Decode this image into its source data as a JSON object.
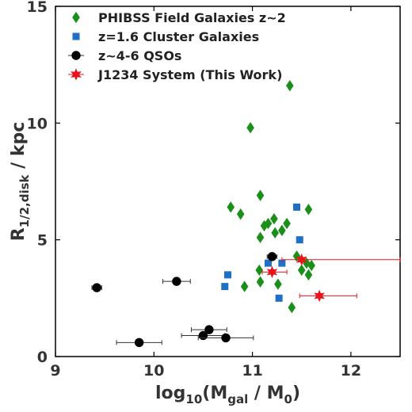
{
  "chart_data": {
    "type": "scatter",
    "xlabel_base": "log",
    "xlabel_sub": "10",
    "xlabel_rest": "(M",
    "xlabel_sub2": "gal",
    "xlabel_mid": " / M",
    "xlabel_sub3": "0",
    "xlabel_end": ")",
    "ylabel_base": "R",
    "ylabel_sub": "1/2,disk",
    "ylabel_end": " / kpc",
    "xlim": [
      9,
      12.5
    ],
    "ylim": [
      0,
      15
    ],
    "xticks": [
      9,
      10,
      11,
      12
    ],
    "yticks": [
      0,
      5,
      10,
      15
    ],
    "legend_position": "top-left",
    "series": [
      {
        "name": "PHIBSS Field Galaxies z~2",
        "marker": "diamond",
        "color": "#1a8f1a",
        "points": [
          [
            11.38,
            11.6
          ],
          [
            10.98,
            9.8
          ],
          [
            11.08,
            6.9
          ],
          [
            10.78,
            6.4
          ],
          [
            10.88,
            6.1
          ],
          [
            11.57,
            6.3
          ],
          [
            11.22,
            5.9
          ],
          [
            11.08,
            5.1
          ],
          [
            11.12,
            5.6
          ],
          [
            11.16,
            5.7
          ],
          [
            11.23,
            5.3
          ],
          [
            11.3,
            5.4
          ],
          [
            11.35,
            5.7
          ],
          [
            11.45,
            4.3
          ],
          [
            11.55,
            4.0
          ],
          [
            11.5,
            3.7
          ],
          [
            11.6,
            3.9
          ],
          [
            11.57,
            3.5
          ],
          [
            11.07,
            3.7
          ],
          [
            11.26,
            3.1
          ],
          [
            11.08,
            3.2
          ],
          [
            10.92,
            3.0
          ],
          [
            11.4,
            2.1
          ]
        ]
      },
      {
        "name": "z=1.6 Cluster Galaxies",
        "marker": "square",
        "color": "#1f6fc4",
        "points": [
          [
            10.75,
            3.5
          ],
          [
            10.72,
            3.0
          ],
          [
            11.16,
            4.0
          ],
          [
            11.45,
            6.4
          ],
          [
            11.48,
            5.0
          ],
          [
            11.27,
            2.5
          ],
          [
            11.3,
            4.0
          ]
        ]
      },
      {
        "name": "z~4-6 QSOs",
        "marker": "circle",
        "color": "#000000",
        "points": [
          {
            "x": 9.42,
            "y": 2.95,
            "xerr": 0.05,
            "yerr": 0.15
          },
          {
            "x": 10.23,
            "y": 3.22,
            "xerr": 0.14,
            "yerr": 0.1
          },
          {
            "x": 10.56,
            "y": 1.15,
            "xerr": 0.18,
            "yerr": 0.1
          },
          {
            "x": 10.5,
            "y": 0.9,
            "xerr": 0.22,
            "yerr": 0.1
          },
          {
            "x": 10.73,
            "y": 0.8,
            "xerr": 0.28,
            "yerr": 0.1
          },
          {
            "x": 9.85,
            "y": 0.6,
            "xerr": 0.23,
            "yerr": 0.1
          },
          {
            "x": 11.2,
            "y": 4.28,
            "xerr": 0.05,
            "yerr": 0.12
          }
        ]
      },
      {
        "name": "J1234 System (This Work)",
        "marker": "star",
        "color": "#e8141a",
        "points": [
          {
            "x": 11.2,
            "y": 3.62,
            "xerr_lo": 0.1,
            "xerr_hi": 0.15,
            "yerr": 0.12
          },
          {
            "x": 11.5,
            "y": 4.15,
            "xerr_lo": 0.2,
            "xerr_hi": 1.0,
            "yerr": 0.12
          },
          {
            "x": 11.68,
            "y": 2.6,
            "xerr_lo": 0.2,
            "xerr_hi": 0.38,
            "yerr": 0.12
          }
        ]
      }
    ]
  }
}
